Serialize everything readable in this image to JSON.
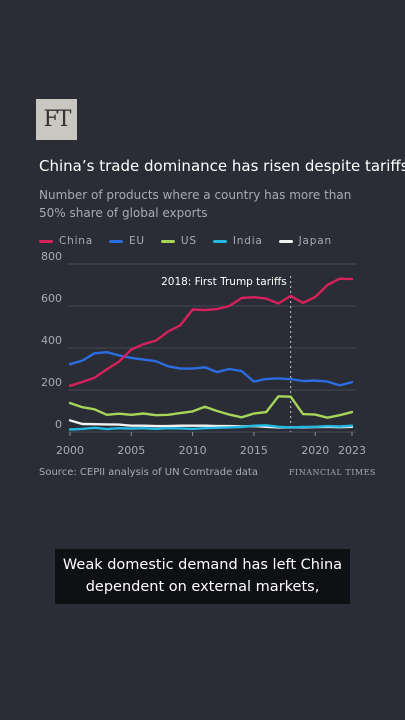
{
  "logo_text": "FT",
  "title": "China’s trade dominance has risen despite tariffs",
  "subtitle": "Number of products where a country has more than 50% share of global exports",
  "source": "Source: CEPII analysis of UN Comtrade data",
  "brand": "FINANCIAL TIMES",
  "caption": "Weak domestic demand has left China dependent on external markets,",
  "chart_data": {
    "type": "line",
    "x": [
      2000,
      2001,
      2002,
      2003,
      2004,
      2005,
      2006,
      2007,
      2008,
      2009,
      2010,
      2011,
      2012,
      2013,
      2014,
      2015,
      2016,
      2017,
      2018,
      2019,
      2020,
      2021,
      2022,
      2023
    ],
    "xticks": [
      2000,
      2005,
      2010,
      2015,
      2020,
      2023
    ],
    "yticks": [
      0,
      200,
      400,
      600,
      800
    ],
    "ylim": [
      0,
      800
    ],
    "xlim": [
      2000,
      2023
    ],
    "grid": true,
    "legend": "top",
    "annotation": {
      "x": 2018,
      "label": "2018: First Trump tariffs"
    },
    "series": [
      {
        "name": "China",
        "color": "#d6215b",
        "values": [
          220,
          238,
          258,
          298,
          335,
          393,
          418,
          435,
          478,
          508,
          583,
          581,
          585,
          600,
          638,
          642,
          635,
          612,
          648,
          615,
          643,
          700,
          730,
          728
        ]
      },
      {
        "name": "EU",
        "color": "#2a6de0",
        "values": [
          323,
          340,
          375,
          380,
          365,
          353,
          345,
          337,
          313,
          302,
          302,
          308,
          285,
          300,
          290,
          240,
          253,
          255,
          252,
          243,
          245,
          240,
          222,
          237
        ]
      },
      {
        "name": "US",
        "color": "#a5d65a",
        "values": [
          138,
          118,
          108,
          82,
          87,
          82,
          88,
          80,
          82,
          90,
          98,
          120,
          100,
          83,
          70,
          88,
          95,
          170,
          168,
          85,
          83,
          68,
          80,
          95
        ]
      },
      {
        "name": "India",
        "color": "#22b8e0",
        "values": [
          12,
          15,
          20,
          14,
          18,
          16,
          18,
          15,
          18,
          17,
          15,
          18,
          20,
          22,
          24,
          30,
          32,
          25,
          22,
          24,
          25,
          28,
          26,
          30
        ]
      },
      {
        "name": "Japan",
        "color": "#f2f2f2",
        "values": [
          55,
          38,
          37,
          36,
          35,
          30,
          30,
          28,
          28,
          30,
          30,
          30,
          28,
          28,
          26,
          28,
          25,
          22,
          22,
          22,
          24,
          25,
          23,
          25
        ]
      }
    ]
  }
}
